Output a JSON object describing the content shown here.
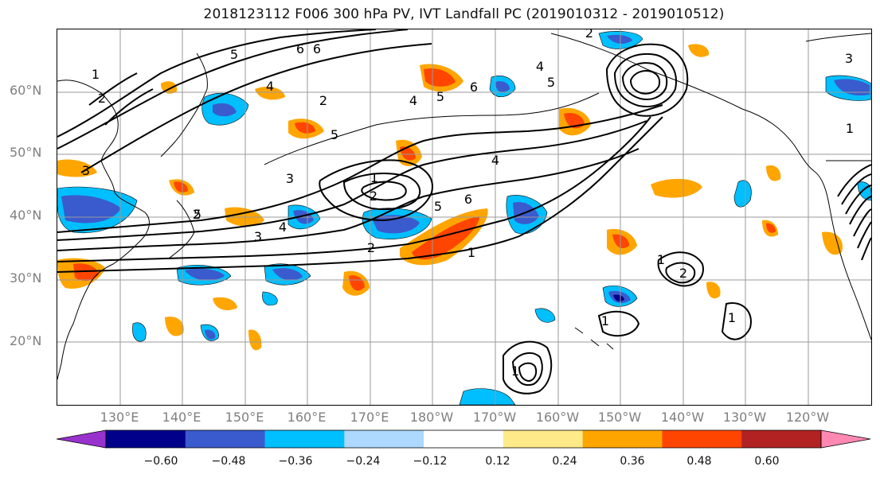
{
  "title": "2018123112 F006 300 hPa PV, IVT Landfall PC (2019010312 - 2019010512)",
  "lat_labels": [
    "60°N",
    "50°N",
    "40°N",
    "30°N",
    "20°N"
  ],
  "lon_labels": [
    "130°E",
    "140°E",
    "150°E",
    "160°E",
    "170°E",
    "180°W",
    "170°W",
    "160°W",
    "150°W",
    "140°W",
    "130°W",
    "120°W"
  ],
  "contour_labels": [
    "1",
    "2",
    "2",
    "5",
    "4",
    "6",
    "6",
    "5",
    "4",
    "5",
    "3",
    "2",
    "1",
    "3",
    "4",
    "2",
    "1",
    "5",
    "6",
    "4",
    "3",
    "2",
    "1",
    "1",
    "2",
    "1",
    "1",
    "1",
    "2",
    "4",
    "5",
    "6",
    "5",
    "3"
  ],
  "colorbar": {
    "ticks": [
      "−0.60",
      "−0.48",
      "−0.36",
      "−0.24",
      "−0.12",
      "0.12",
      "0.24",
      "0.36",
      "0.48",
      "0.60"
    ],
    "colors": [
      "#9932cc",
      "#00008b",
      "#3a5bcd",
      "#00bfff",
      "#add8ff",
      "#ffffff",
      "#ffea8a",
      "#ffa500",
      "#ff4500",
      "#b22222",
      "#ff88b3"
    ]
  },
  "colors": {
    "grid": "#9a9a9a",
    "contour": "#000000",
    "axis_label": "#7f7f7f"
  }
}
